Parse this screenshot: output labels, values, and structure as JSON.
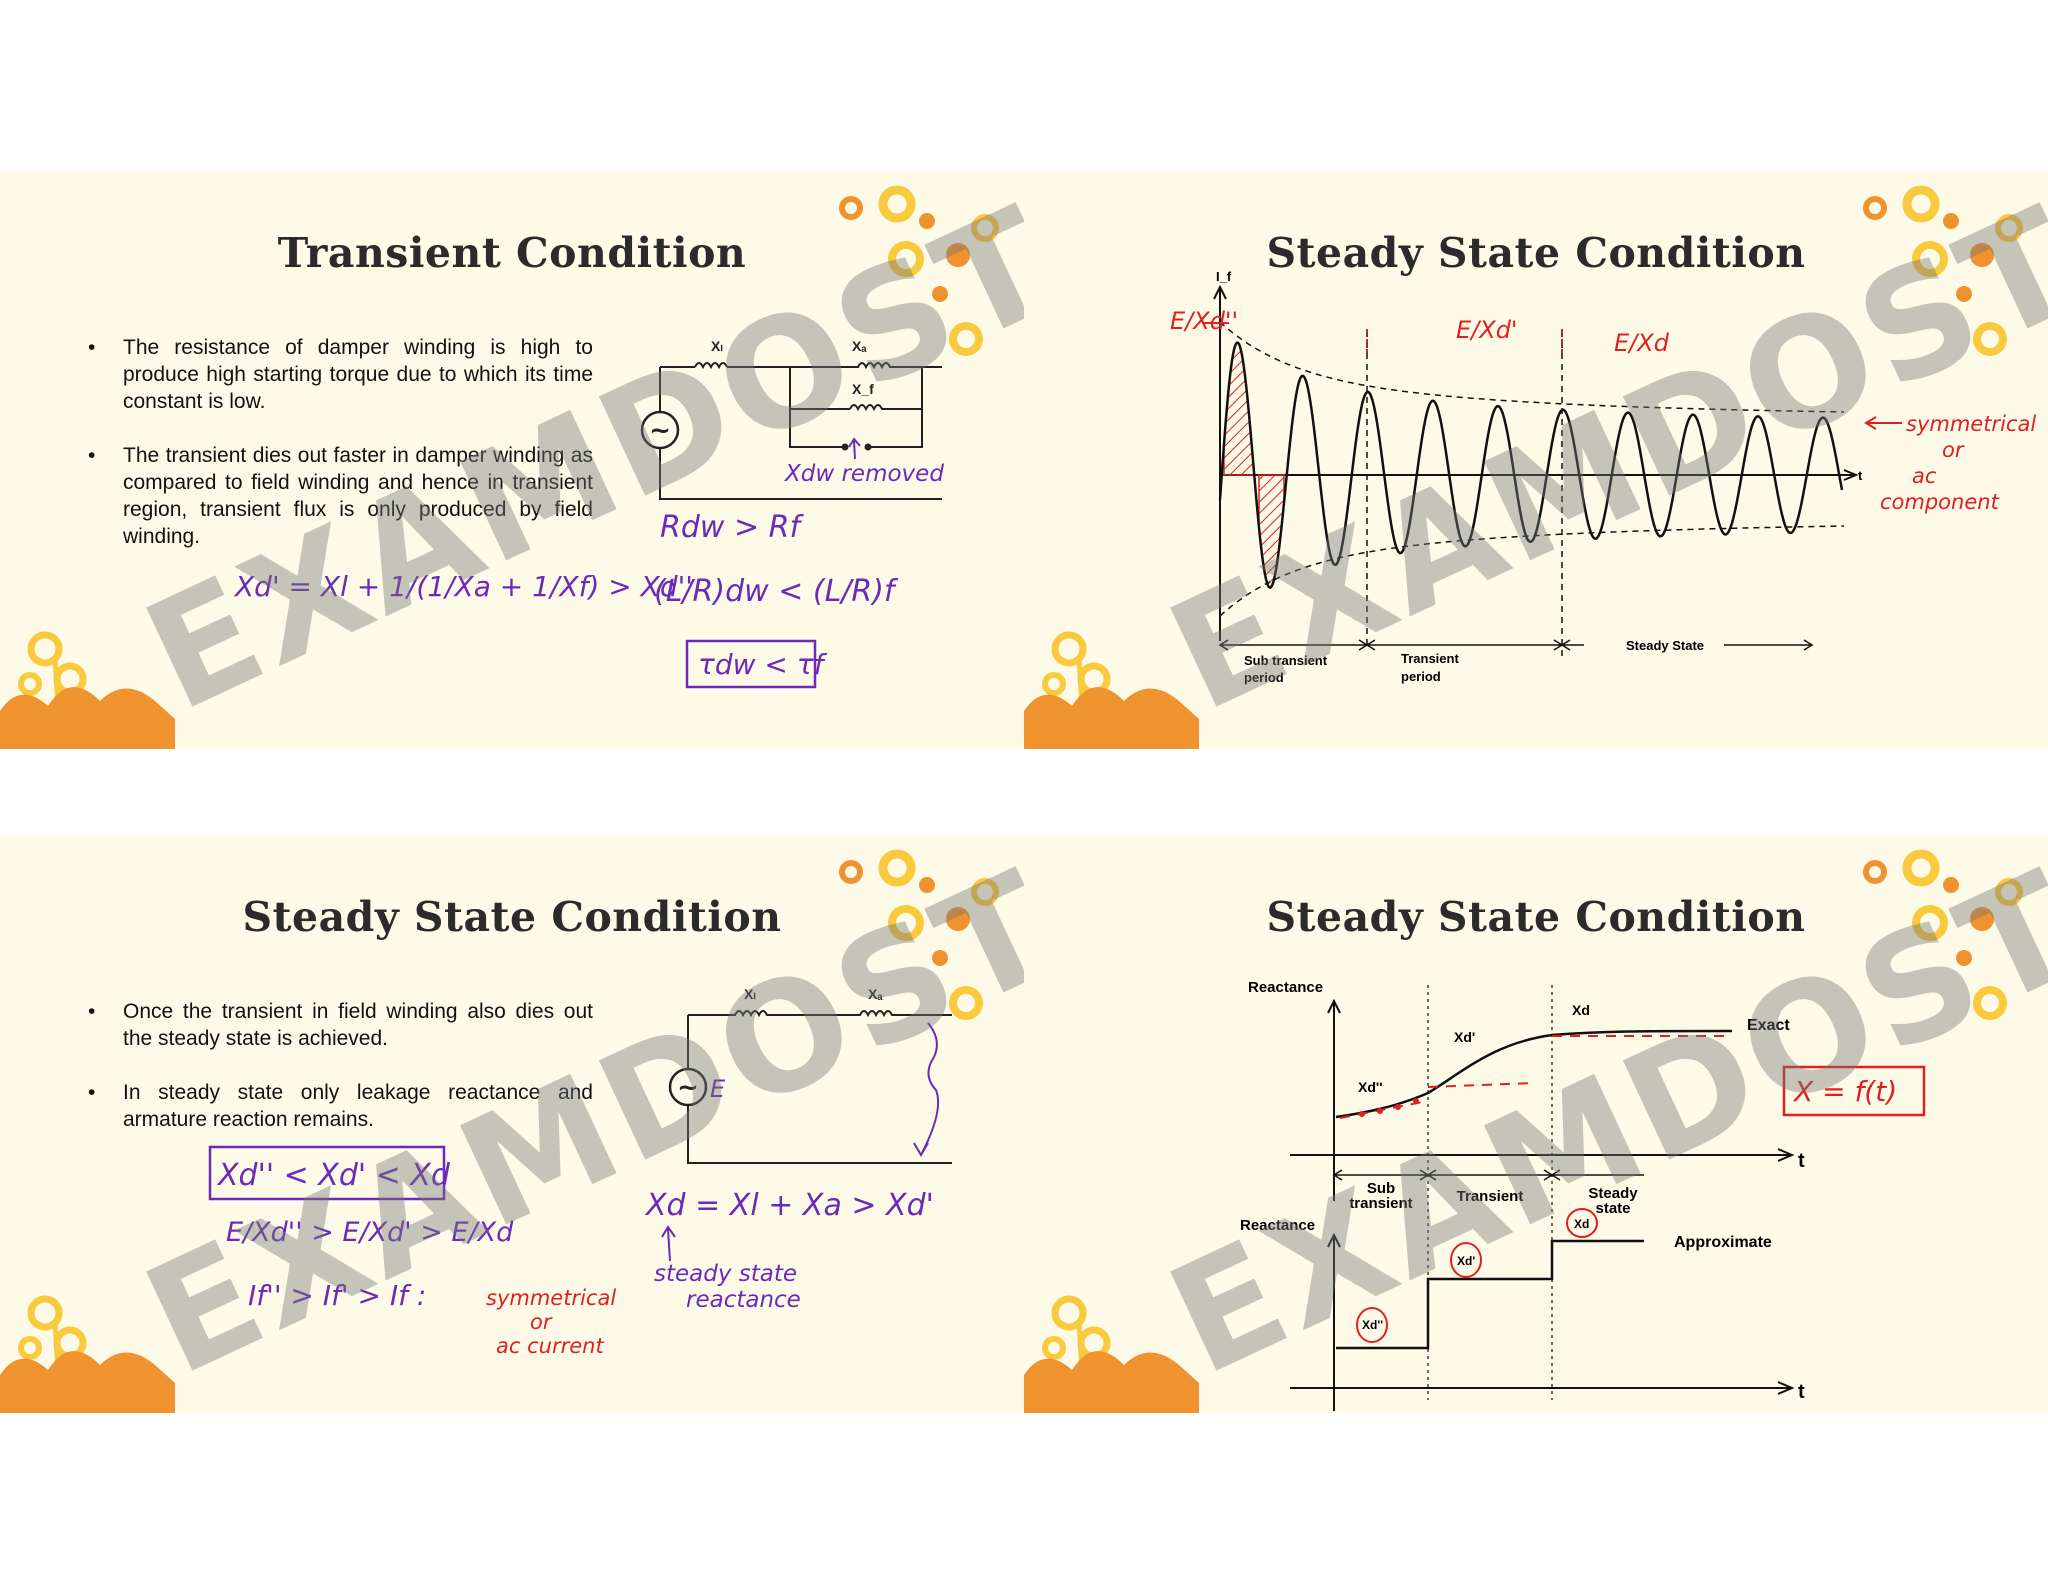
{
  "watermark": "EXAMDOST",
  "colors": {
    "slide_bg": "#fdfbe8",
    "ink_red": "#e02020",
    "ink_purple": "#6b2bb8",
    "deco_orange": "#f0922e",
    "deco_yellow": "#f9c93e"
  },
  "slide1": {
    "title": "Transient Condition",
    "bullets": [
      "The resistance of damper winding is high to produce high starting torque due to which its time constant is low.",
      "The transient dies out faster in damper winding as compared to field winding and hence in transient region, transient flux is only produced by field winding."
    ],
    "circuit": {
      "label_xl": "Xₗ",
      "label_xa": "Xₐ",
      "label_xf": "X_f",
      "source": "~"
    },
    "notes": {
      "xdw_removed": "Xdw removed",
      "eq_xd_prime": "Xd' = Xl + 1/(1/Xa + 1/Xf) > Xd''",
      "r_compare": "Rdw > Rf",
      "lr_compare": "(L/R)dw < (L/R)f",
      "tau_compare": "τdw < τf"
    }
  },
  "slide2": {
    "title": "Steady State Condition",
    "y_label": "I_f",
    "x_label": "t",
    "labels": {
      "e_over_xdpp": "E/Xd''",
      "e_over_xdp": "E/Xd'",
      "e_over_xd": "E/Xd",
      "symmetrical": "symmetrical",
      "or": "or",
      "ac": "ac",
      "component": "component"
    },
    "periods": {
      "sub_transient": "Sub transient",
      "period": "period",
      "transient": "Transient",
      "steady": "Steady State"
    }
  },
  "slide3": {
    "title": "Steady State Condition",
    "bullets": [
      "Once the transient in field winding also dies out the steady state is achieved.",
      "In steady state only leakage reactance and armature reaction remains."
    ],
    "circuit": {
      "label_xl": "Xₗ",
      "label_xa": "Xₐ",
      "source_e": "E"
    },
    "notes": {
      "box_ineq": "Xd'' < Xd' < Xd",
      "e_ineq": "E/Xd'' > E/Xd' > E/Xd",
      "i_ineq": "If'' > If' > If :",
      "sym_1": "symmetrical",
      "sym_2": "or",
      "sym_3": "ac current",
      "xd_eq": "Xd = Xl + Xa > Xd'",
      "steady_1": "steady state",
      "steady_2": "reactance"
    }
  },
  "slide4": {
    "title": "Steady State Condition",
    "top_graph": {
      "y_label": "Reactance",
      "x_label": "t",
      "curve_label": "Exact",
      "xdpp": "Xd''",
      "xdp": "Xd'",
      "xd": "Xd"
    },
    "regions": {
      "sub_1": "Sub",
      "sub_2": "transient",
      "transient": "Transient",
      "steady_1": "Steady",
      "steady_2": "state"
    },
    "bottom_graph": {
      "y_label": "Reactance",
      "x_label": "t",
      "curve_label": "Approximate",
      "xdpp": "Xd''",
      "xdp": "Xd'",
      "xd": "Xd"
    },
    "formula": "X = f(t)"
  }
}
